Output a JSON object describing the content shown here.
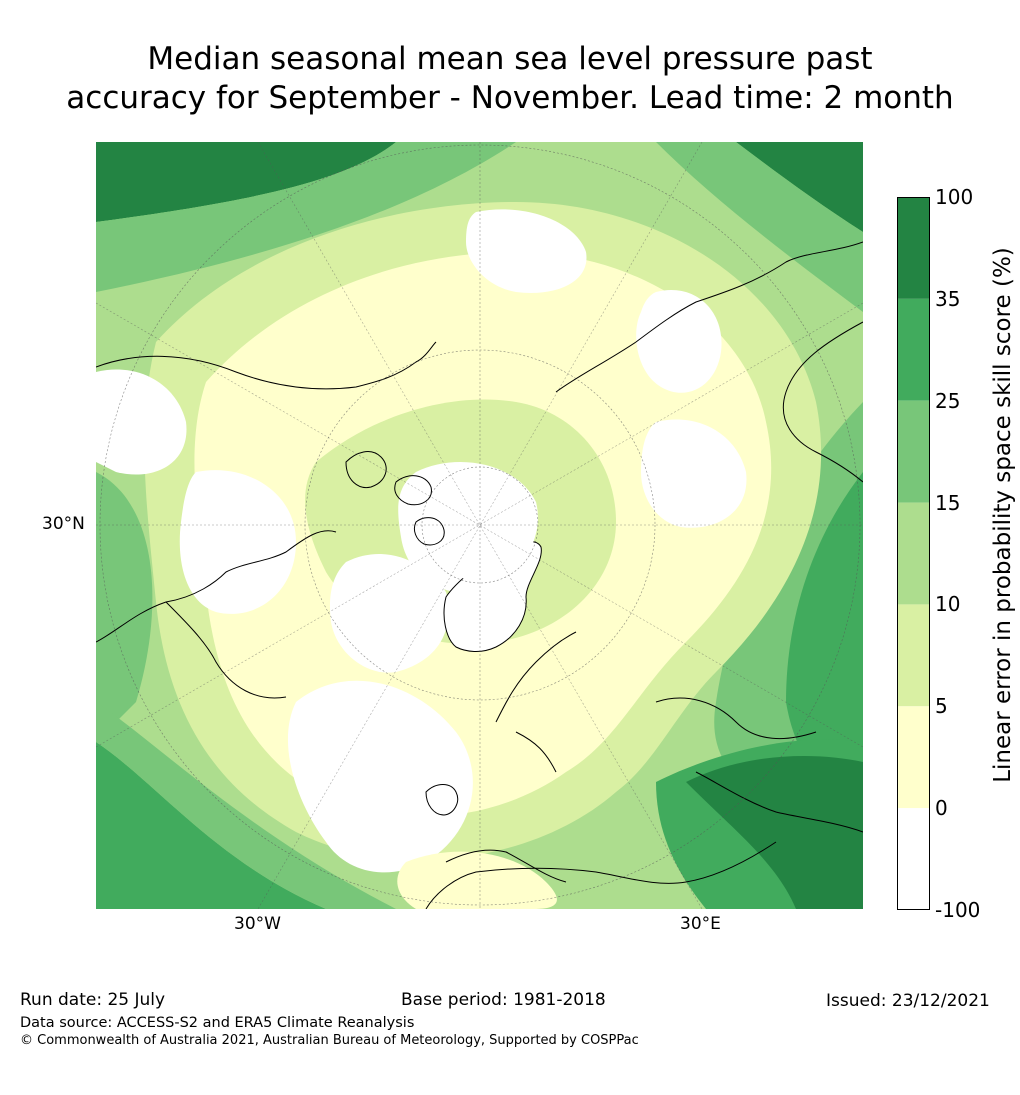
{
  "title": {
    "line1": "Median seasonal mean sea level pressure past",
    "line2": "accuracy for September - November. Lead time: 2 month"
  },
  "map": {
    "projection": "north-polar-stereographic",
    "lat_label": "30°N",
    "lon_labels": [
      "30°W",
      "30°E"
    ]
  },
  "colorbar": {
    "title": "Linear error in probability space skill score (%)",
    "ticks": [
      "100",
      "35",
      "25",
      "15",
      "10",
      "5",
      "0",
      "-100"
    ],
    "bins": [
      {
        "from": -100,
        "to": 0,
        "color": "#ffffff"
      },
      {
        "from": 0,
        "to": 5,
        "color": "#ffffcc"
      },
      {
        "from": 5,
        "to": 10,
        "color": "#d9f0a3"
      },
      {
        "from": 10,
        "to": 15,
        "color": "#addd8e"
      },
      {
        "from": 15,
        "to": 25,
        "color": "#78c679"
      },
      {
        "from": 25,
        "to": 35,
        "color": "#41ab5d"
      },
      {
        "from": 35,
        "to": 100,
        "color": "#238443"
      }
    ]
  },
  "footer": {
    "run_date": "Run date: 25 July",
    "base_period": "Base period: 1981-2018",
    "issued": "Issued: 23/12/2021",
    "data_source": "Data source: ACCESS-S2 and ERA5 Climate Reanalysis",
    "copyright": "© Commonwealth of Australia 2021, Australian Bureau of Meteorology, Supported by COSPPac"
  }
}
